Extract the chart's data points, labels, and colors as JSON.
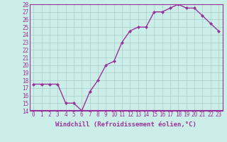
{
  "x": [
    0,
    1,
    2,
    3,
    4,
    5,
    6,
    7,
    8,
    9,
    10,
    11,
    12,
    13,
    14,
    15,
    16,
    17,
    18,
    19,
    20,
    21,
    22,
    23
  ],
  "y": [
    17.5,
    17.5,
    17.5,
    17.5,
    15.0,
    15.0,
    14.0,
    16.5,
    18.0,
    20.0,
    20.5,
    23.0,
    24.5,
    25.0,
    25.0,
    27.0,
    27.0,
    27.5,
    28.0,
    27.5,
    27.5,
    26.5,
    25.5,
    24.5
  ],
  "line_color": "#993399",
  "marker": "D",
  "marker_size": 2.0,
  "background_color": "#cceee8",
  "grid_color": "#aacccc",
  "xlabel": "Windchill (Refroidissement éolien,°C)",
  "ylabel": "",
  "xlim": [
    -0.5,
    23.5
  ],
  "ylim": [
    14,
    28
  ],
  "yticks": [
    14,
    15,
    16,
    17,
    18,
    19,
    20,
    21,
    22,
    23,
    24,
    25,
    26,
    27,
    28
  ],
  "xticks": [
    0,
    1,
    2,
    3,
    4,
    5,
    6,
    7,
    8,
    9,
    10,
    11,
    12,
    13,
    14,
    15,
    16,
    17,
    18,
    19,
    20,
    21,
    22,
    23
  ],
  "xlabel_fontsize": 6.5,
  "tick_fontsize": 5.5,
  "linewidth": 1.0,
  "spine_color": "#993399",
  "separator_color": "#993399"
}
